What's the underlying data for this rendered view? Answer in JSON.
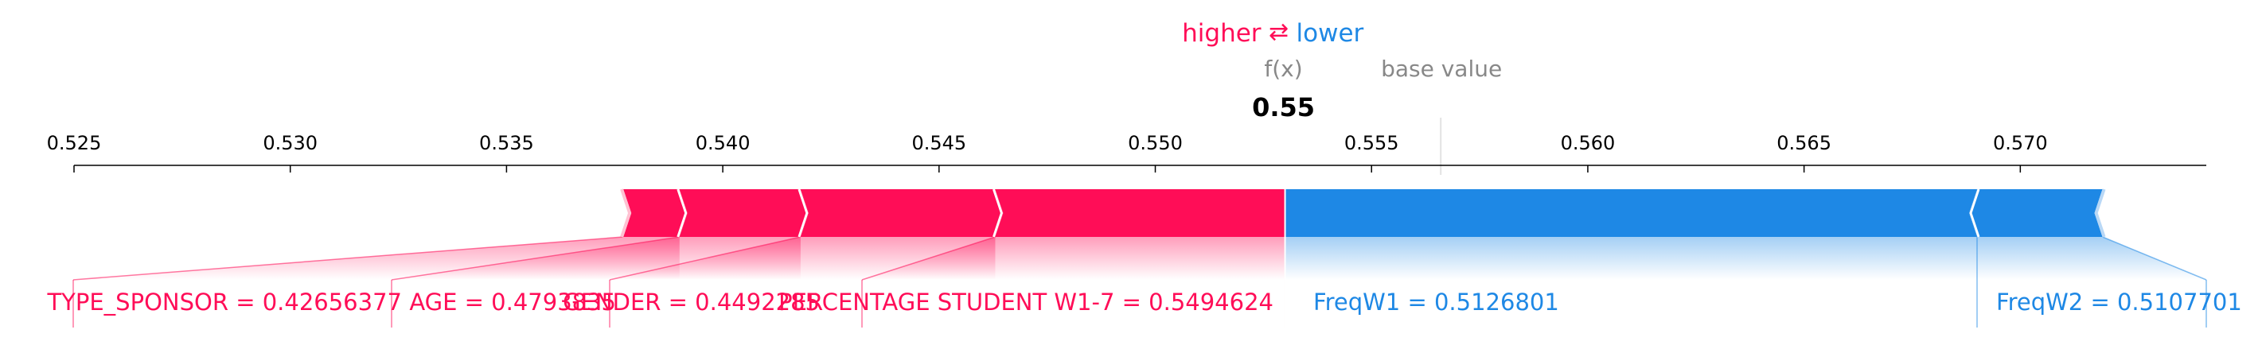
{
  "chart_data": {
    "type": "force",
    "legend": {
      "higher": "higher",
      "arrow": "⇄",
      "lower": "lower"
    },
    "fx_label": "f(x)",
    "base_label": "base value",
    "fx_value": 0.553,
    "fx_text": "0.55",
    "base_value": 0.5566,
    "xlim": [
      0.525,
      0.5743
    ],
    "ticks": [
      {
        "v": 0.525,
        "label": "0.525"
      },
      {
        "v": 0.53,
        "label": "0.530"
      },
      {
        "v": 0.535,
        "label": "0.535"
      },
      {
        "v": 0.54,
        "label": "0.540"
      },
      {
        "v": 0.545,
        "label": "0.545"
      },
      {
        "v": 0.55,
        "label": "0.550"
      },
      {
        "v": 0.555,
        "label": "0.555"
      },
      {
        "v": 0.56,
        "label": "0.560"
      },
      {
        "v": 0.565,
        "label": "0.565"
      },
      {
        "v": 0.57,
        "label": "0.570"
      }
    ],
    "positive": [
      {
        "label": "PERCENTAGE STUDENT W1-7 = 0.5494624",
        "start": 0.5463,
        "end": 0.553
      },
      {
        "label": "GENDER = 0.4492285",
        "start": 0.5418,
        "end": 0.5463
      },
      {
        "label": "AGE = 0.4793835",
        "start": 0.539,
        "end": 0.5418
      },
      {
        "label": "TYPE_SPONSOR = 0.42656377",
        "start": 0.5377,
        "end": 0.539
      }
    ],
    "negative": [
      {
        "label": "FreqW1 = 0.5126801",
        "start": 0.553,
        "end": 0.569
      },
      {
        "label": "FreqW2 = 0.5107701",
        "start": 0.569,
        "end": 0.5719
      }
    ],
    "colors": {
      "positive": "#ff0d57",
      "negative": "#1e88e5",
      "muted": "#888888",
      "axis": "#000000"
    }
  }
}
